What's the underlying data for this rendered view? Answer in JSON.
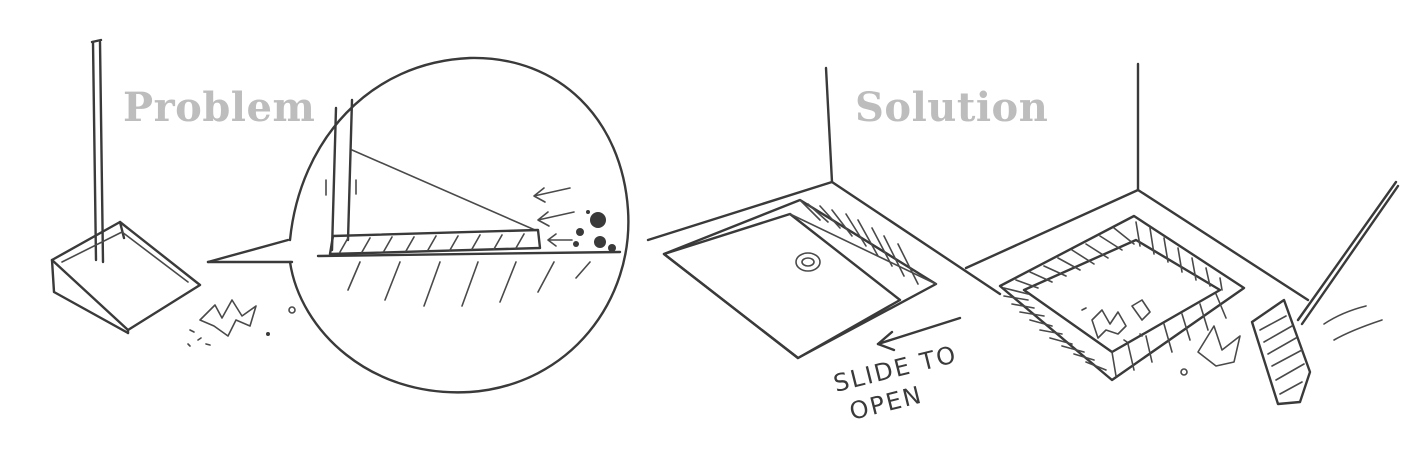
{
  "labels": {
    "problem": "Problem",
    "solution": "Solution"
  },
  "annotations": {
    "slide_line1": "SLIDE TO",
    "slide_line2": "OPEN"
  }
}
